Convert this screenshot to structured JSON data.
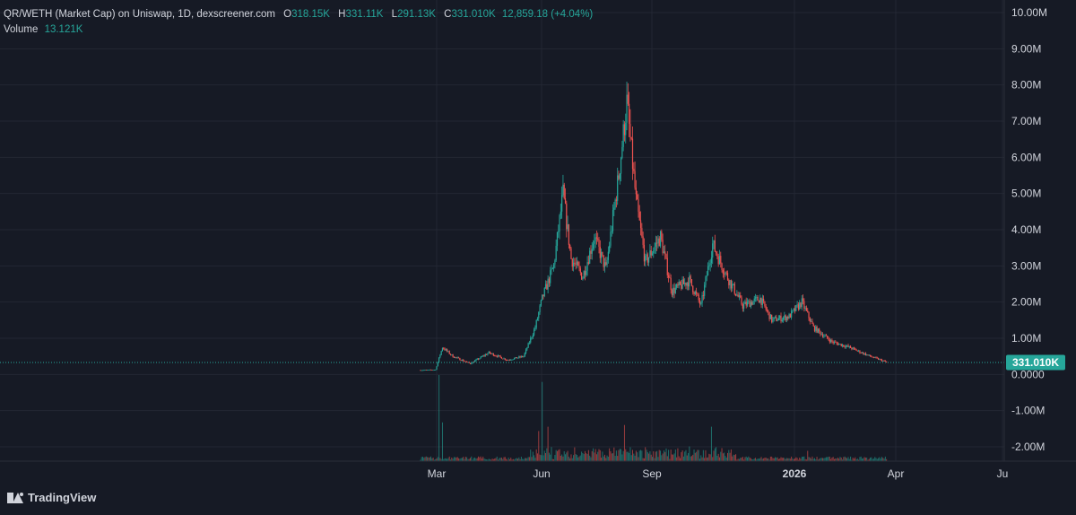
{
  "legend": {
    "title": "QR/WETH (Market Cap) on Uniswap, 1D, dexscreener.com",
    "o_label": "O",
    "o_value": "318.15K",
    "h_label": "H",
    "h_value": "331.11K",
    "l_label": "L",
    "l_value": "291.13K",
    "c_label": "C",
    "c_value": "331.010K",
    "change": "12,859.18 (+4.04%)",
    "volume_label": "Volume",
    "volume_value": "13.121K"
  },
  "brand": {
    "name": "TradingView",
    "icon": "tradingview-logo-icon"
  },
  "colors": {
    "background": "#161a25",
    "grid": "#232733",
    "up": "#26a69a",
    "down": "#ef5350",
    "text": "#d1d4dc"
  },
  "chart_data": {
    "type": "candlestick",
    "y_axis": {
      "ticks": [
        "10.00M",
        "9.00M",
        "8.00M",
        "7.00M",
        "6.00M",
        "5.00M",
        "4.00M",
        "3.00M",
        "2.00M",
        "1.00M",
        "0.0000",
        "-1.00M",
        "-2.00M"
      ],
      "tick_values": [
        10000000,
        9000000,
        8000000,
        7000000,
        6000000,
        5000000,
        4000000,
        3000000,
        2000000,
        1000000,
        0,
        -1000000,
        -2000000
      ],
      "range": [
        -2300000,
        10000000
      ]
    },
    "x_axis": {
      "ticks": [
        "Mar",
        "Jun",
        "Sep",
        "2026",
        "Apr",
        "Ju"
      ],
      "tick_bold": [
        false,
        false,
        false,
        true,
        false,
        false
      ]
    },
    "last_price": {
      "value": 331010,
      "label": "331.010K"
    },
    "grid": true,
    "price_path": [
      {
        "x": "2025-02-15",
        "y": 120000
      },
      {
        "x": "2025-02-28",
        "y": 130000
      },
      {
        "x": "2025-03-03",
        "y": 450000
      },
      {
        "x": "2025-03-06",
        "y": 750000
      },
      {
        "x": "2025-03-15",
        "y": 500000
      },
      {
        "x": "2025-03-30",
        "y": 300000
      },
      {
        "x": "2025-04-15",
        "y": 600000
      },
      {
        "x": "2025-05-01",
        "y": 400000
      },
      {
        "x": "2025-05-15",
        "y": 500000
      },
      {
        "x": "2025-05-25",
        "y": 1300000
      },
      {
        "x": "2025-05-31",
        "y": 2100000
      },
      {
        "x": "2025-06-10",
        "y": 3000000
      },
      {
        "x": "2025-06-18",
        "y": 5000000
      },
      {
        "x": "2025-06-25",
        "y": 3200000
      },
      {
        "x": "2025-07-05",
        "y": 2700000
      },
      {
        "x": "2025-07-15",
        "y": 3800000
      },
      {
        "x": "2025-07-25",
        "y": 2900000
      },
      {
        "x": "2025-08-05",
        "y": 5500000
      },
      {
        "x": "2025-08-12",
        "y": 7500000
      },
      {
        "x": "2025-08-20",
        "y": 4800000
      },
      {
        "x": "2025-08-28",
        "y": 3100000
      },
      {
        "x": "2025-09-10",
        "y": 3800000
      },
      {
        "x": "2025-09-20",
        "y": 2300000
      },
      {
        "x": "2025-10-05",
        "y": 2600000
      },
      {
        "x": "2025-10-15",
        "y": 1900000
      },
      {
        "x": "2025-10-25",
        "y": 3600000
      },
      {
        "x": "2025-11-05",
        "y": 2800000
      },
      {
        "x": "2025-11-20",
        "y": 1900000
      },
      {
        "x": "2025-12-05",
        "y": 2100000
      },
      {
        "x": "2025-12-15",
        "y": 1500000
      },
      {
        "x": "2025-12-30",
        "y": 1600000
      },
      {
        "x": "2026-01-10",
        "y": 2000000
      },
      {
        "x": "2026-01-20",
        "y": 1300000
      },
      {
        "x": "2026-02-05",
        "y": 900000
      },
      {
        "x": "2026-02-20",
        "y": 750000
      },
      {
        "x": "2026-03-10",
        "y": 500000
      },
      {
        "x": "2026-03-25",
        "y": 331010
      }
    ],
    "volume_peaks": [
      {
        "x": "2025-03-03",
        "v": 1.0
      },
      {
        "x": "2025-03-06",
        "v": 0.45
      },
      {
        "x": "2025-05-28",
        "v": 0.35
      },
      {
        "x": "2025-05-31",
        "v": 0.92
      },
      {
        "x": "2025-06-05",
        "v": 0.4
      },
      {
        "x": "2025-08-10",
        "v": 0.42
      },
      {
        "x": "2025-10-24",
        "v": 0.4
      },
      {
        "x": "2026-01-15",
        "v": 0.12
      }
    ]
  }
}
